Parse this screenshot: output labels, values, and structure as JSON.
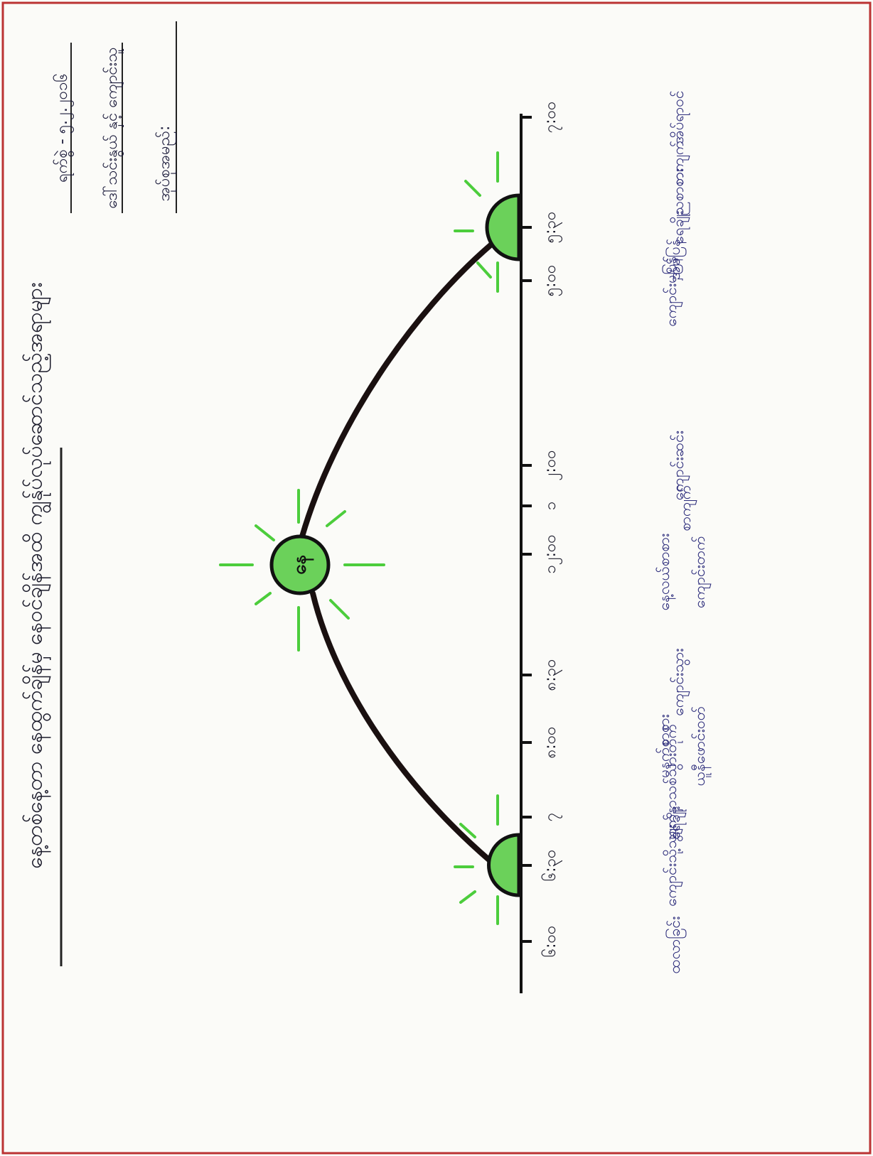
{
  "title": "နေ့တစ်နေ့တာ နေထွက်ချိန်မှ နေဝင်ချိန်အထိ ကျွန်ုပ်လုပ်ဆောင်သည့်အရာများ",
  "header": {
    "date": "ရက်စွဲ - ၅.၂.၂၀၁၆",
    "teacher": "ဒေါ်သင်းနွယ် နှင့် ကျောင်းသူ",
    "group": "အုပ်စုအမည်:"
  },
  "sun_label": "နေ",
  "times": [
    "၆:၀၀",
    "၆:၃၀",
    "၇",
    "၈:၀၀",
    "၈:၃၀",
    "၁၂:၀၀",
    "၁",
    "၂:၀၀",
    "၅:၀၀",
    "၅:၃၀",
    "၇:၀၀"
  ],
  "activities": [
    "ထလာခြင်း",
    "ကျောင်းသို့သွား",
    "ရေချိုး",
    "မျက်နှာသစ်သွားတိုက်",
    "မနက်စာစား",
    "ယူနီဖောင်းဝတ်",
    "ကျောင်းသွား",
    "နေ့လယ်စာစား",
    "ကျောင်းတက်",
    "စာကျက်",
    "ကျောင်းဆင်း",
    "ကျောင်းမှပြန်",
    "အိမ်ပြန်",
    "ရေချိုး",
    "ညစာစား",
    "စာကျက်",
    "အိပ်ရာဝင်"
  ]
}
